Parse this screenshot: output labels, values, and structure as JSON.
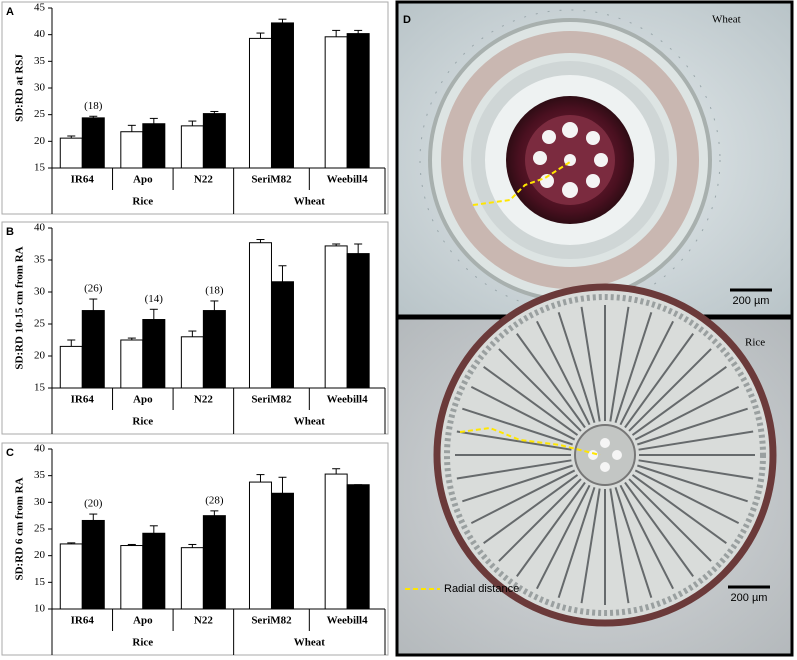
{
  "chart_data": [
    {
      "type": "bar",
      "panel": "A",
      "ylabel": "SD:RD at RSJ",
      "ylim": [
        15,
        45
      ],
      "yticks": [
        15,
        20,
        25,
        30,
        35,
        40,
        45
      ],
      "groups": [
        {
          "name": "Rice",
          "categories": [
            "IR64",
            "Apo",
            "N22"
          ]
        },
        {
          "name": "Wheat",
          "categories": [
            "SeriM82",
            "Weebill4"
          ]
        }
      ],
      "series": [
        {
          "color": "#ffffff",
          "values": [
            20.6,
            21.8,
            22.9,
            39.3,
            39.6
          ],
          "errors": [
            0.4,
            1.2,
            0.9,
            1.0,
            1.2
          ]
        },
        {
          "color": "#000000",
          "values": [
            24.4,
            23.3,
            25.2,
            42.2,
            40.2
          ],
          "errors": [
            0.3,
            1.0,
            0.4,
            0.7,
            0.6
          ]
        }
      ],
      "annotations": [
        "(18)",
        null,
        null,
        null,
        null
      ]
    },
    {
      "type": "bar",
      "panel": "B",
      "ylabel": "SD:RD 10-15 cm from RA",
      "ylim": [
        15,
        40
      ],
      "yticks": [
        15,
        20,
        25,
        30,
        35,
        40
      ],
      "groups": [
        {
          "name": "Rice",
          "categories": [
            "IR64",
            "Apo",
            "N22"
          ]
        },
        {
          "name": "Wheat",
          "categories": [
            "SeriM82",
            "Weebill4"
          ]
        }
      ],
      "series": [
        {
          "color": "#ffffff",
          "values": [
            21.5,
            22.5,
            23.0,
            37.7,
            37.2
          ],
          "errors": [
            1.0,
            0.3,
            0.9,
            0.5,
            0.3
          ]
        },
        {
          "color": "#000000",
          "values": [
            27.1,
            25.7,
            27.1,
            31.6,
            36.0
          ],
          "errors": [
            1.8,
            1.6,
            1.5,
            2.5,
            1.5
          ]
        }
      ],
      "annotations": [
        "(26)",
        "(14)",
        "(18)",
        null,
        null
      ]
    },
    {
      "type": "bar",
      "panel": "C",
      "ylabel": "SD:RD 6 cm from RA",
      "ylim": [
        10,
        40
      ],
      "yticks": [
        10,
        15,
        20,
        25,
        30,
        35,
        40
      ],
      "groups": [
        {
          "name": "Rice",
          "categories": [
            "IR64",
            "Apo",
            "N22"
          ]
        },
        {
          "name": "Wheat",
          "categories": [
            "SeriM82",
            "Weebill4"
          ]
        }
      ],
      "series": [
        {
          "color": "#ffffff",
          "values": [
            22.2,
            21.9,
            21.5,
            33.8,
            35.3
          ],
          "errors": [
            0.2,
            0.2,
            0.6,
            1.4,
            1.0
          ]
        },
        {
          "color": "#000000",
          "values": [
            26.6,
            24.2,
            27.5,
            31.7,
            33.3
          ],
          "errors": [
            1.2,
            1.4,
            0.9,
            3.0,
            0
          ]
        }
      ],
      "annotations": [
        "(20)",
        null,
        "(28)",
        null,
        null
      ]
    }
  ],
  "images": {
    "panel": "D",
    "top_label": "Wheat",
    "bottom_label": "Rice",
    "scale_top": "200 µm",
    "scale_bottom": "200 µm",
    "legend": "Radial distance"
  }
}
